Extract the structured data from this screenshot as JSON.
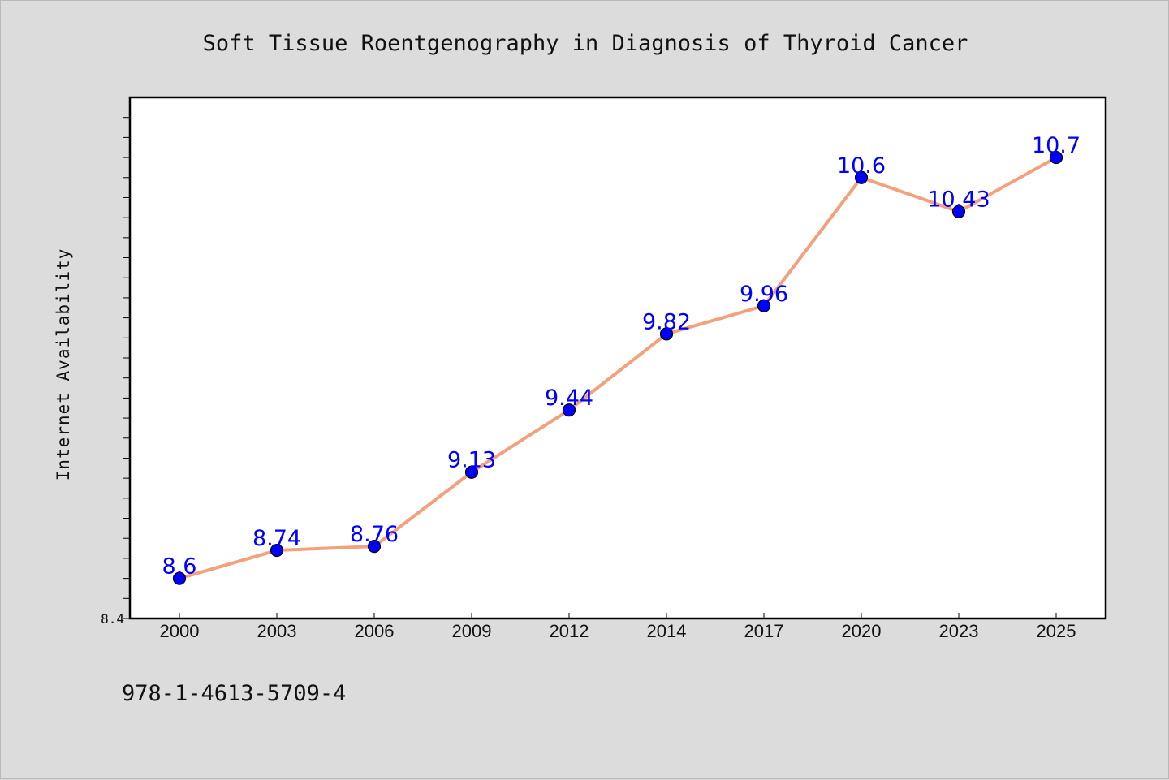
{
  "chart_data": {
    "type": "line",
    "title": "Soft Tissue Roentgenography in Diagnosis of Thyroid Cancer",
    "xlabel": "",
    "ylabel": "Internet Availability",
    "categories": [
      "2000",
      "2003",
      "2006",
      "2009",
      "2012",
      "2014",
      "2017",
      "2020",
      "2023",
      "2025"
    ],
    "series": [
      {
        "values": [
          8.6,
          8.74,
          8.76,
          9.13,
          9.44,
          9.82,
          9.96,
          10.6,
          10.43,
          10.7
        ],
        "labels": [
          "8.6",
          "8.74",
          "8.76",
          "9.13",
          "9.44",
          "9.82",
          "9.96",
          "10.6",
          "10.43",
          "10.7"
        ]
      }
    ],
    "ylim": [
      8.4,
      11.0
    ],
    "y_ticks_labeled": [
      "8.4"
    ],
    "y_tick_step": 0.1,
    "grid": false,
    "line_color": "#f4a07c",
    "marker_color": "#0000ff",
    "label_color": "#0000ff",
    "plot_background": "#ffffff",
    "page_background": "#dcdcdc"
  },
  "footer": {
    "isbn": "978-1-4613-5709-4"
  }
}
